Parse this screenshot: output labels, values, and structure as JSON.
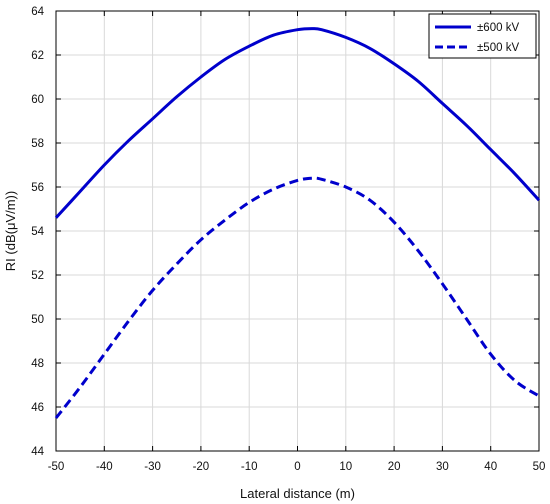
{
  "chart_data": {
    "type": "line",
    "xlabel": "Lateral distance (m)",
    "ylabel": "RI (dB(μV/m))",
    "xlim": [
      -50,
      50
    ],
    "ylim": [
      44,
      64
    ],
    "xticks": [
      -50,
      -40,
      -30,
      -20,
      -10,
      0,
      10,
      20,
      30,
      40,
      50
    ],
    "yticks": [
      44,
      46,
      48,
      50,
      52,
      54,
      56,
      58,
      60,
      62,
      64
    ],
    "grid": true,
    "legend_position": "top-right",
    "series": [
      {
        "name": "±600 kV",
        "color": "#0000cc",
        "style": "solid",
        "x": [
          -50,
          -45,
          -40,
          -35,
          -30,
          -25,
          -20,
          -15,
          -10,
          -5,
          0,
          3,
          5,
          10,
          15,
          20,
          25,
          30,
          35,
          40,
          45,
          50
        ],
        "y": [
          54.6,
          55.8,
          57.0,
          58.1,
          59.1,
          60.1,
          61.0,
          61.8,
          62.4,
          62.9,
          63.15,
          63.2,
          63.15,
          62.8,
          62.3,
          61.6,
          60.8,
          59.8,
          58.8,
          57.7,
          56.6,
          55.4
        ]
      },
      {
        "name": "±500 kV",
        "color": "#0000cc",
        "style": "dashed",
        "x": [
          -50,
          -45,
          -40,
          -35,
          -30,
          -25,
          -20,
          -15,
          -10,
          -5,
          0,
          3,
          5,
          10,
          15,
          20,
          25,
          30,
          35,
          40,
          45,
          50
        ],
        "y": [
          45.5,
          46.9,
          48.4,
          49.9,
          51.3,
          52.5,
          53.6,
          54.5,
          55.3,
          55.9,
          56.3,
          56.4,
          56.35,
          56.0,
          55.4,
          54.4,
          53.1,
          51.6,
          50.0,
          48.4,
          47.2,
          46.5
        ]
      }
    ]
  }
}
